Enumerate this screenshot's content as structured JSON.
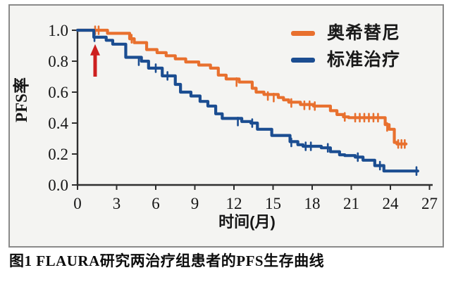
{
  "figure": {
    "caption": "图1 FLAURA研究两治疗组患者的PFS生存曲线"
  },
  "chart_data": {
    "type": "line",
    "subtype": "kaplan-meier-step-curve",
    "title": "",
    "xlabel": "时间(月)",
    "ylabel": "PFS率",
    "xlim": [
      0,
      27
    ],
    "ylim": [
      0.0,
      1.0
    ],
    "x_ticks": [
      0,
      3,
      6,
      9,
      12,
      15,
      18,
      21,
      24,
      27
    ],
    "y_tick_labels": [
      "1.0",
      "0.8",
      "0.6",
      "0.4",
      "0.2",
      "0.0"
    ],
    "grid": false,
    "legend_position": "top-right",
    "axis_color": "#2f2f2f",
    "annotation": {
      "type": "up-arrow",
      "meaning": "treatment-start-marker",
      "color": "#cd1f1f",
      "x_month": 1.35,
      "tip_value": 0.91,
      "tail_value": 0.7
    },
    "series": [
      {
        "name": "奥希替尼",
        "slug": "osimertinib",
        "color": "#e8702e",
        "median_pfs_months": 18.9,
        "end_x": 25.2,
        "points": [
          [
            0,
            1.0
          ],
          [
            2.3,
            0.98
          ],
          [
            4.0,
            0.945
          ],
          [
            4.35,
            0.92
          ],
          [
            5.3,
            0.875
          ],
          [
            6.1,
            0.855
          ],
          [
            6.8,
            0.835
          ],
          [
            7.5,
            0.815
          ],
          [
            8.3,
            0.795
          ],
          [
            9.3,
            0.775
          ],
          [
            10.2,
            0.755
          ],
          [
            10.8,
            0.71
          ],
          [
            11.4,
            0.685
          ],
          [
            12.4,
            0.665
          ],
          [
            13.4,
            0.625
          ],
          [
            13.7,
            0.6
          ],
          [
            14.3,
            0.585
          ],
          [
            15.4,
            0.565
          ],
          [
            15.8,
            0.55
          ],
          [
            16.2,
            0.535
          ],
          [
            17.1,
            0.52
          ],
          [
            18.1,
            0.51
          ],
          [
            19.4,
            0.48
          ],
          [
            19.9,
            0.455
          ],
          [
            20.4,
            0.44
          ],
          [
            20.8,
            0.435
          ],
          [
            23.6,
            0.39
          ],
          [
            23.9,
            0.36
          ],
          [
            24.3,
            0.275
          ],
          [
            24.5,
            0.265
          ]
        ],
        "censors": [
          [
            1.35,
            1.0
          ],
          [
            1.62,
            1.0
          ],
          [
            4.15,
            0.945
          ],
          [
            12.2,
            0.665
          ],
          [
            14.6,
            0.575
          ],
          [
            15.05,
            0.565
          ],
          [
            16.4,
            0.53
          ],
          [
            17.4,
            0.515
          ],
          [
            17.8,
            0.515
          ],
          [
            18.2,
            0.51
          ],
          [
            20.5,
            0.44
          ],
          [
            21.3,
            0.435
          ],
          [
            21.65,
            0.435
          ],
          [
            22.0,
            0.435
          ],
          [
            22.35,
            0.435
          ],
          [
            22.7,
            0.435
          ],
          [
            23.05,
            0.435
          ],
          [
            23.75,
            0.375
          ],
          [
            24.6,
            0.265
          ],
          [
            24.85,
            0.265
          ],
          [
            25.1,
            0.265
          ]
        ]
      },
      {
        "name": "标准治疗",
        "slug": "standard-treatment",
        "color": "#1b4d91",
        "median_pfs_months": 10.2,
        "end_x": 26.1,
        "points": [
          [
            0,
            1.0
          ],
          [
            1.25,
            0.955
          ],
          [
            2.2,
            0.935
          ],
          [
            2.7,
            0.91
          ],
          [
            3.7,
            0.825
          ],
          [
            4.9,
            0.8
          ],
          [
            5.45,
            0.755
          ],
          [
            6.5,
            0.705
          ],
          [
            7.5,
            0.65
          ],
          [
            7.9,
            0.6
          ],
          [
            8.7,
            0.575
          ],
          [
            9.4,
            0.54
          ],
          [
            10.0,
            0.51
          ],
          [
            10.6,
            0.46
          ],
          [
            11.1,
            0.43
          ],
          [
            12.6,
            0.41
          ],
          [
            13.3,
            0.4
          ],
          [
            13.8,
            0.36
          ],
          [
            14.9,
            0.32
          ],
          [
            16.3,
            0.28
          ],
          [
            16.9,
            0.26
          ],
          [
            17.3,
            0.25
          ],
          [
            18.7,
            0.24
          ],
          [
            19.4,
            0.215
          ],
          [
            20.1,
            0.195
          ],
          [
            20.5,
            0.19
          ],
          [
            21.3,
            0.18
          ],
          [
            21.9,
            0.16
          ],
          [
            22.8,
            0.125
          ],
          [
            23.5,
            0.09
          ]
        ],
        "censors": [
          [
            1.3,
            0.955
          ],
          [
            4.7,
            0.8
          ],
          [
            6.0,
            0.755
          ],
          [
            6.9,
            0.705
          ],
          [
            12.3,
            0.41
          ],
          [
            13.4,
            0.4
          ],
          [
            16.4,
            0.275
          ],
          [
            17.5,
            0.25
          ],
          [
            17.9,
            0.25
          ],
          [
            19.2,
            0.24
          ],
          [
            21.5,
            0.18
          ],
          [
            23.2,
            0.125
          ],
          [
            26.0,
            0.09
          ]
        ]
      }
    ]
  }
}
